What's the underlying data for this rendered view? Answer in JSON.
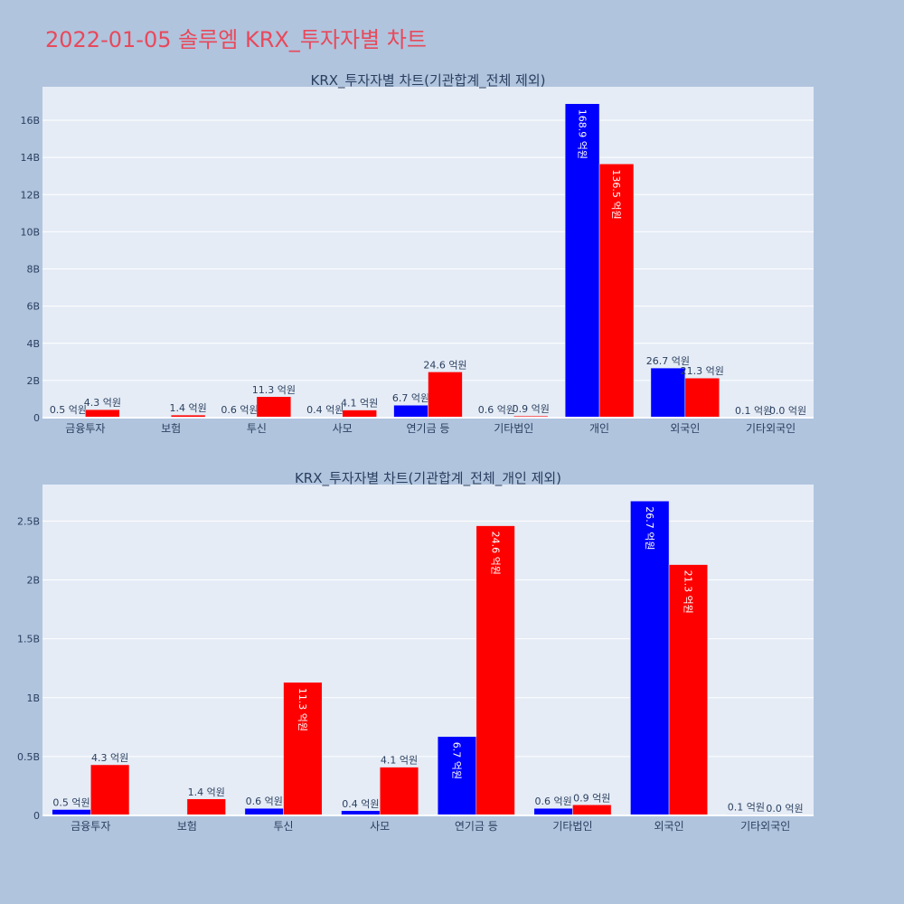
{
  "title": "2022-01-05 솔루엠 KRX_투자자별 차트",
  "colors": {
    "buy": "#0000ff",
    "sell": "#ff0000",
    "title": "#e8495b",
    "plot_bg": "#e5ecf6",
    "page_bg": "#b0c4de"
  },
  "chart_data": [
    {
      "type": "bar",
      "title": "KRX_투자자별 차트(기관합계_전체 제외)",
      "categories": [
        "금융투자",
        "보험",
        "투신",
        "사모",
        "연기금 등",
        "기타법인",
        "개인",
        "외국인",
        "기타외국인"
      ],
      "series": [
        {
          "color": "#0000ff",
          "values": [
            0.05,
            0,
            0.06,
            0.04,
            0.67,
            0.06,
            16.89,
            2.67,
            0.01
          ],
          "labels": [
            "0.5 억원",
            "",
            "0.6 억원",
            "0.4 억원",
            "6.7 억원",
            "0.6 억원",
            "168.9 억원",
            "26.7 억원",
            "0.1 억원"
          ]
        },
        {
          "color": "#ff0000",
          "values": [
            0.43,
            0.14,
            1.13,
            0.41,
            2.46,
            0.09,
            13.65,
            2.13,
            0.0
          ],
          "labels": [
            "4.3 억원",
            "1.4 억원",
            "11.3 억원",
            "4.1 억원",
            "24.6 억원",
            "0.9 억원",
            "136.5 억원",
            "21.3 억원",
            "0.0 억원"
          ]
        }
      ],
      "yticks": [
        0,
        2,
        4,
        6,
        8,
        10,
        12,
        14,
        16
      ],
      "ytick_labels": [
        "0",
        "2B",
        "4B",
        "6B",
        "8B",
        "10B",
        "12B",
        "14B",
        "16B"
      ],
      "ylim": [
        0,
        17.8
      ],
      "grid": true
    },
    {
      "type": "bar",
      "title": "KRX_투자자별 차트(기관합계_전체_개인 제외)",
      "categories": [
        "금융투자",
        "보험",
        "투신",
        "사모",
        "연기금 등",
        "기타법인",
        "외국인",
        "기타외국인"
      ],
      "series": [
        {
          "color": "#0000ff",
          "values": [
            0.05,
            0,
            0.06,
            0.04,
            0.67,
            0.06,
            2.67,
            0.01
          ],
          "labels": [
            "0.5 억원",
            "",
            "0.6 억원",
            "0.4 억원",
            "6.7 억원",
            "0.6 억원",
            "26.7 억원",
            "0.1 억원"
          ]
        },
        {
          "color": "#ff0000",
          "values": [
            0.43,
            0.14,
            1.13,
            0.41,
            2.46,
            0.09,
            2.13,
            0.0
          ],
          "labels": [
            "4.3 억원",
            "1.4 억원",
            "11.3 억원",
            "4.1 억원",
            "24.6 억원",
            "0.9 억원",
            "21.3 억원",
            "0.0 억원"
          ]
        }
      ],
      "yticks": [
        0,
        0.5,
        1,
        1.5,
        2,
        2.5
      ],
      "ytick_labels": [
        "0",
        "0.5B",
        "1B",
        "1.5B",
        "2B",
        "2.5B"
      ],
      "ylim": [
        0,
        2.81
      ],
      "grid": true
    }
  ]
}
